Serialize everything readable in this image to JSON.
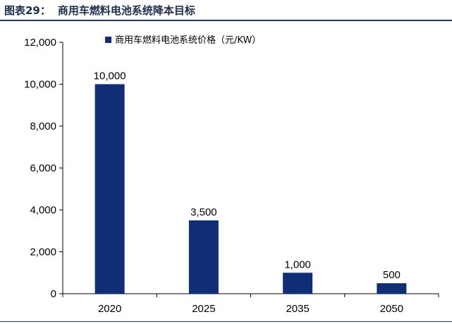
{
  "figure": {
    "label": "图表29：",
    "caption": "商用车燃料电池系统降本目标"
  },
  "chart_data": {
    "type": "bar",
    "categories": [
      "2020",
      "2025",
      "2035",
      "2050"
    ],
    "series": [
      {
        "name": "商用车燃料电池系统价格（元/KW）",
        "values": [
          10000,
          3500,
          1000,
          500
        ]
      }
    ],
    "data_labels": [
      "10,000",
      "3,500",
      "1,000",
      "500"
    ],
    "ylim": [
      0,
      12000
    ],
    "yticks": [
      0,
      2000,
      4000,
      6000,
      8000,
      10000,
      12000
    ],
    "ytick_labels": [
      "0",
      "2,000",
      "4,000",
      "6,000",
      "8,000",
      "10,000",
      "12,000"
    ],
    "grid": false,
    "legend_position": "top",
    "color": "#0f2e75"
  }
}
